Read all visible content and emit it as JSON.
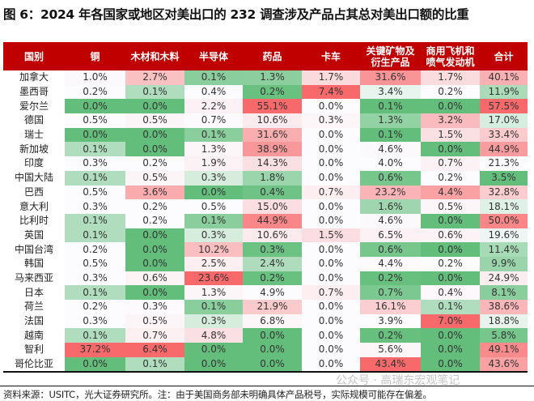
{
  "chart_data": {
    "type": "heatmap",
    "title": "图 6：2024 年各国家或地区对美出口的 232 调查涉及产品占其总对美出口额的比重",
    "columns": [
      "国别",
      "铜",
      "木材和木料",
      "半导体",
      "药品",
      "卡车",
      "关键矿物及|衍生产品",
      "商用飞机和|喷气发动机",
      "合计"
    ],
    "unit": "%",
    "rows": [
      {
        "name": "加拿大",
        "values": [
          1.0,
          2.7,
          0.1,
          1.3,
          1.7,
          31.6,
          1.7,
          40.1
        ]
      },
      {
        "name": "墨西哥",
        "values": [
          0.2,
          0.1,
          0.4,
          0.2,
          7.4,
          3.4,
          0.2,
          11.9
        ]
      },
      {
        "name": "爱尔兰",
        "values": [
          0.0,
          0.0,
          2.2,
          55.1,
          0.0,
          0.1,
          0.0,
          57.5
        ]
      },
      {
        "name": "德国",
        "values": [
          0.5,
          0.5,
          0.7,
          10.6,
          0.3,
          1.3,
          3.2,
          17.0
        ]
      },
      {
        "name": "瑞士",
        "values": [
          0.0,
          0.0,
          0.1,
          31.6,
          0.0,
          0.1,
          1.5,
          33.4
        ]
      },
      {
        "name": "新加坡",
        "values": [
          0.1,
          0.0,
          1.3,
          38.9,
          0.0,
          4.6,
          0.0,
          44.9
        ]
      },
      {
        "name": "印度",
        "values": [
          0.3,
          0.2,
          1.9,
          14.3,
          0.0,
          4.0,
          0.7,
          21.3
        ]
      },
      {
        "name": "中国大陆",
        "values": [
          0.1,
          0.5,
          0.3,
          1.8,
          0.0,
          0.6,
          0.2,
          3.5
        ]
      },
      {
        "name": "巴西",
        "values": [
          0.5,
          3.6,
          0.0,
          0.4,
          0.7,
          23.2,
          4.4,
          32.8
        ]
      },
      {
        "name": "意大利",
        "values": [
          0.3,
          0.2,
          0.5,
          15.0,
          0.0,
          1.6,
          0.5,
          18.1
        ]
      },
      {
        "name": "比利时",
        "values": [
          0.1,
          0.2,
          0.1,
          44.9,
          0.0,
          4.6,
          0.0,
          50.0
        ]
      },
      {
        "name": "英国",
        "values": [
          0.1,
          0.0,
          0.3,
          10.6,
          1.5,
          6.5,
          0.6,
          19.6
        ]
      },
      {
        "name": "中国台湾",
        "values": [
          0.2,
          0.0,
          10.2,
          0.3,
          0.0,
          0.6,
          0.0,
          11.4
        ]
      },
      {
        "name": "韩国",
        "values": [
          0.5,
          0.0,
          2.5,
          2.4,
          0.0,
          4.4,
          0.2,
          9.9
        ]
      },
      {
        "name": "马来西亚",
        "values": [
          0.3,
          0.6,
          23.6,
          0.2,
          0.0,
          0.2,
          0.0,
          24.9
        ]
      },
      {
        "name": "日本",
        "values": [
          0.1,
          0.0,
          1.3,
          4.9,
          0.7,
          0.7,
          0.4,
          8.1
        ]
      },
      {
        "name": "荷兰",
        "values": [
          0.2,
          0.3,
          0.1,
          21.9,
          0.0,
          16.1,
          0.1,
          38.6
        ]
      },
      {
        "name": "法国",
        "values": [
          0.3,
          0.5,
          0.3,
          6.8,
          0.0,
          3.9,
          7.0,
          18.8
        ]
      },
      {
        "name": "越南",
        "values": [
          0.1,
          0.7,
          4.8,
          0.0,
          0.0,
          0.2,
          0.0,
          5.8
        ]
      },
      {
        "name": "智利",
        "values": [
          37.2,
          6.4,
          0.0,
          0.0,
          0.0,
          5.6,
          0.0,
          49.1
        ]
      },
      {
        "name": "哥伦比亚",
        "values": [
          0.0,
          0.1,
          0.0,
          0.0,
          0.0,
          43.4,
          0.0,
          43.6
        ]
      }
    ],
    "color_scale": {
      "low": "#63be7b",
      "mid": "#fcfcff",
      "high": "#f8696b"
    }
  },
  "header_color": "#c00000",
  "watermark": "公众号 · 高瑞东宏观笔记",
  "note": "资料来源：USITC，光大证券研究所。注：由于美国商务部未明确具体产品税号，实际规模可能存在偏差。"
}
